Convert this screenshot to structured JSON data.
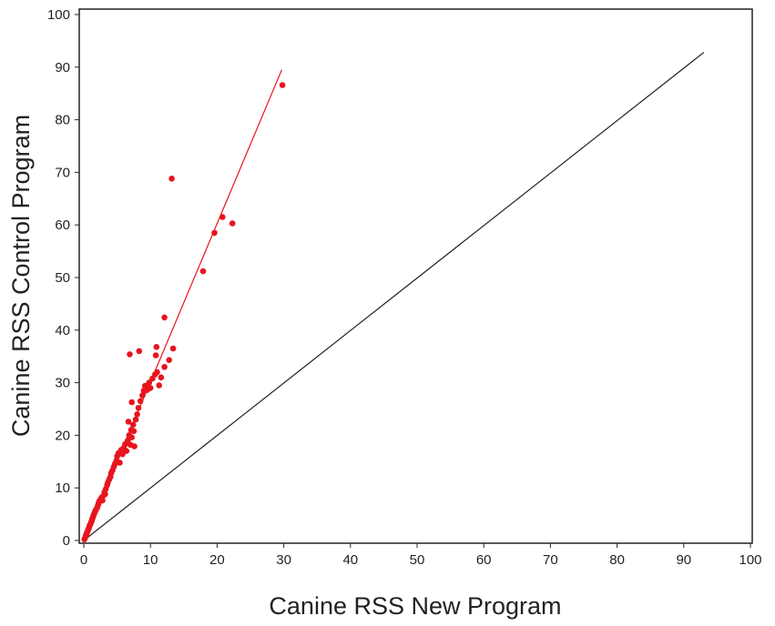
{
  "chart_data": {
    "type": "scatter",
    "title": "",
    "xlabel": "Canine RSS New Program",
    "ylabel": "Canine RSS Control Program",
    "xlim": [
      0,
      100
    ],
    "ylim": [
      0,
      100
    ],
    "xticks": [
      0,
      10,
      20,
      30,
      40,
      50,
      60,
      70,
      80,
      90,
      100
    ],
    "yticks": [
      0,
      10,
      20,
      30,
      40,
      50,
      60,
      70,
      80,
      90,
      100
    ],
    "grid": false,
    "legend": "none",
    "series": [
      {
        "kind": "points",
        "color": "#e8141e",
        "points": [
          [
            0.1,
            0.2
          ],
          [
            0.2,
            0.5
          ],
          [
            0.3,
            0.9
          ],
          [
            0.4,
            1.2
          ],
          [
            0.5,
            1.6
          ],
          [
            0.6,
            1.8
          ],
          [
            0.7,
            2.2
          ],
          [
            0.8,
            2.5
          ],
          [
            0.9,
            2.9
          ],
          [
            1.0,
            3.1
          ],
          [
            1.1,
            3.5
          ],
          [
            1.2,
            3.8
          ],
          [
            1.3,
            4.2
          ],
          [
            1.4,
            4.5
          ],
          [
            1.5,
            4.9
          ],
          [
            1.6,
            5.2
          ],
          [
            1.7,
            5.5
          ],
          [
            1.8,
            5.8
          ],
          [
            2.0,
            6.2
          ],
          [
            2.1,
            6.6
          ],
          [
            2.2,
            7.0
          ],
          [
            2.3,
            7.4
          ],
          [
            2.5,
            7.8
          ],
          [
            2.7,
            8.2
          ],
          [
            2.8,
            7.6
          ],
          [
            3.0,
            8.6
          ],
          [
            3.1,
            9.2
          ],
          [
            3.2,
            8.8
          ],
          [
            3.3,
            9.8
          ],
          [
            3.5,
            10.5
          ],
          [
            3.6,
            11.0
          ],
          [
            3.8,
            11.6
          ],
          [
            4.0,
            12.1
          ],
          [
            4.1,
            12.8
          ],
          [
            4.3,
            13.3
          ],
          [
            4.5,
            14.0
          ],
          [
            4.7,
            14.6
          ],
          [
            4.9,
            15.2
          ],
          [
            5.0,
            16.0
          ],
          [
            5.2,
            16.6
          ],
          [
            5.4,
            14.8
          ],
          [
            5.6,
            17.2
          ],
          [
            5.8,
            16.4
          ],
          [
            6.0,
            17.6
          ],
          [
            6.2,
            18.3
          ],
          [
            6.4,
            17.0
          ],
          [
            6.6,
            19.0
          ],
          [
            6.8,
            20.0
          ],
          [
            7.0,
            18.2
          ],
          [
            7.1,
            21.0
          ],
          [
            7.2,
            19.6
          ],
          [
            7.4,
            22.0
          ],
          [
            7.5,
            20.8
          ],
          [
            7.6,
            17.9
          ],
          [
            7.8,
            23.0
          ],
          [
            8.0,
            24.0
          ],
          [
            8.2,
            25.2
          ],
          [
            8.5,
            26.5
          ],
          [
            8.8,
            27.6
          ],
          [
            9.0,
            28.5
          ],
          [
            9.2,
            29.4
          ],
          [
            9.5,
            28.6
          ],
          [
            9.8,
            30.0
          ],
          [
            10.0,
            29.0
          ],
          [
            10.3,
            30.8
          ],
          [
            10.7,
            31.6
          ],
          [
            11.0,
            32.0
          ],
          [
            11.3,
            29.5
          ],
          [
            11.6,
            31.0
          ],
          [
            12.1,
            33.0
          ],
          [
            12.8,
            34.3
          ],
          [
            13.4,
            36.5
          ],
          [
            6.7,
            22.6
          ],
          [
            7.2,
            26.3
          ],
          [
            6.9,
            35.4
          ],
          [
            8.3,
            36.0
          ],
          [
            10.8,
            35.2
          ],
          [
            10.9,
            36.8
          ],
          [
            12.1,
            42.4
          ],
          [
            13.2,
            68.8
          ],
          [
            17.9,
            51.2
          ],
          [
            19.6,
            58.5
          ],
          [
            20.8,
            61.5
          ],
          [
            22.3,
            60.3
          ],
          [
            29.8,
            86.6
          ]
        ]
      },
      {
        "kind": "line",
        "color": "#e8141e",
        "points": [
          [
            0,
            0
          ],
          [
            29.7,
            89.5
          ]
        ]
      },
      {
        "kind": "line",
        "color": "#222222",
        "points": [
          [
            0,
            0
          ],
          [
            93,
            92.8
          ]
        ]
      }
    ]
  }
}
